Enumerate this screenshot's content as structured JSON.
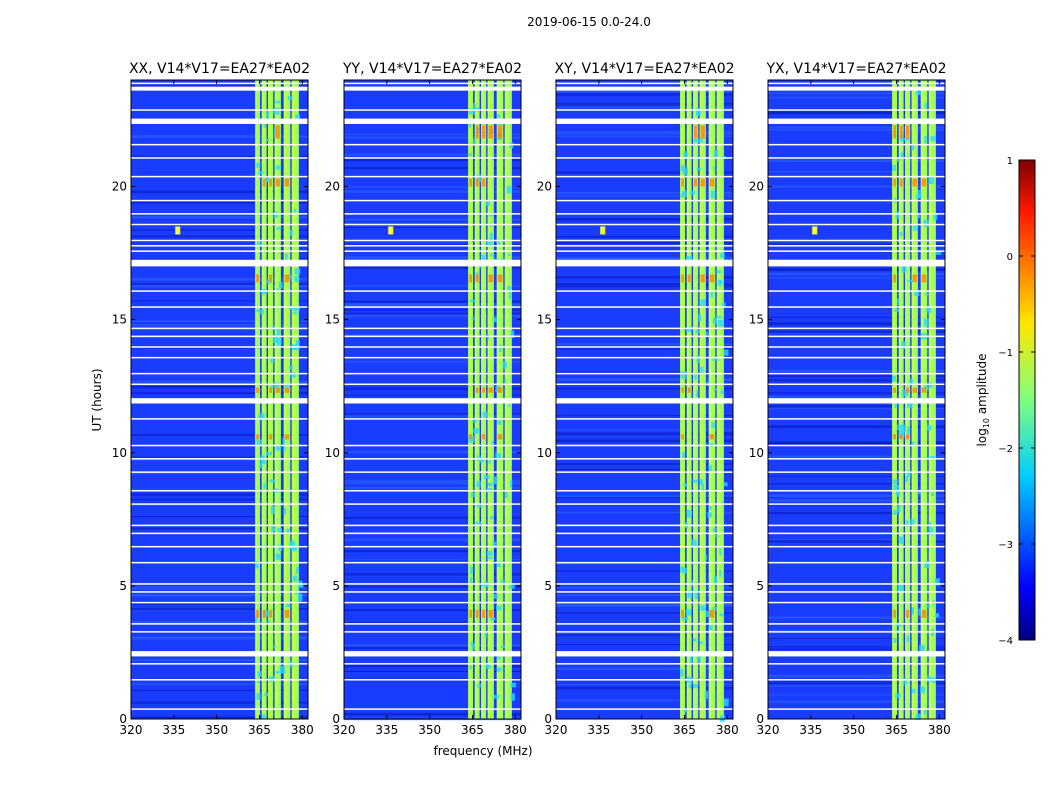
{
  "chart_data": {
    "type": "heatmap",
    "suptitle": "2019-06-15 0.0-24.0",
    "xlabel": "frequency (MHz)",
    "ylabel": "UT (hours)",
    "xlim": [
      320,
      382
    ],
    "ylim": [
      0,
      24
    ],
    "xticks": [
      320,
      335,
      350,
      365,
      380
    ],
    "yticks": [
      0,
      5,
      10,
      15,
      20
    ],
    "panels": [
      {
        "title": "XX, V14*V17=EA27*EA02"
      },
      {
        "title": "YY, V14*V17=EA27*EA02"
      },
      {
        "title": "XY, V14*V17=EA27*EA02"
      },
      {
        "title": "YX, V14*V17=EA27*EA02"
      }
    ],
    "colorbar": {
      "label": "log10 amplitude",
      "label_main": "log",
      "label_sub": "10",
      "label_rest": " amplitude",
      "range": [
        -4,
        1
      ],
      "ticks": [
        -4,
        -3,
        -2,
        -1,
        0,
        1
      ],
      "tick_labels": [
        "−4",
        "−3",
        "−2",
        "−1",
        "0",
        "1"
      ],
      "colormap": "jet"
    },
    "signal_bands_mhz": [
      [
        363.5,
        365.2
      ],
      [
        365.8,
        367.5
      ],
      [
        368.0,
        369.8
      ],
      [
        370.3,
        372.5
      ],
      [
        373.5,
        375.8
      ],
      [
        376.3,
        378.8
      ]
    ],
    "gap_bands_ut": [
      [
        23.6,
        23.75
      ],
      [
        22.35,
        22.55
      ],
      [
        17.0,
        17.25
      ],
      [
        11.85,
        12.05
      ],
      [
        2.35,
        2.55
      ]
    ],
    "background_color": "#1a3cff",
    "signal_color": "#9cff5c",
    "strong_color": "#ff8a00"
  }
}
